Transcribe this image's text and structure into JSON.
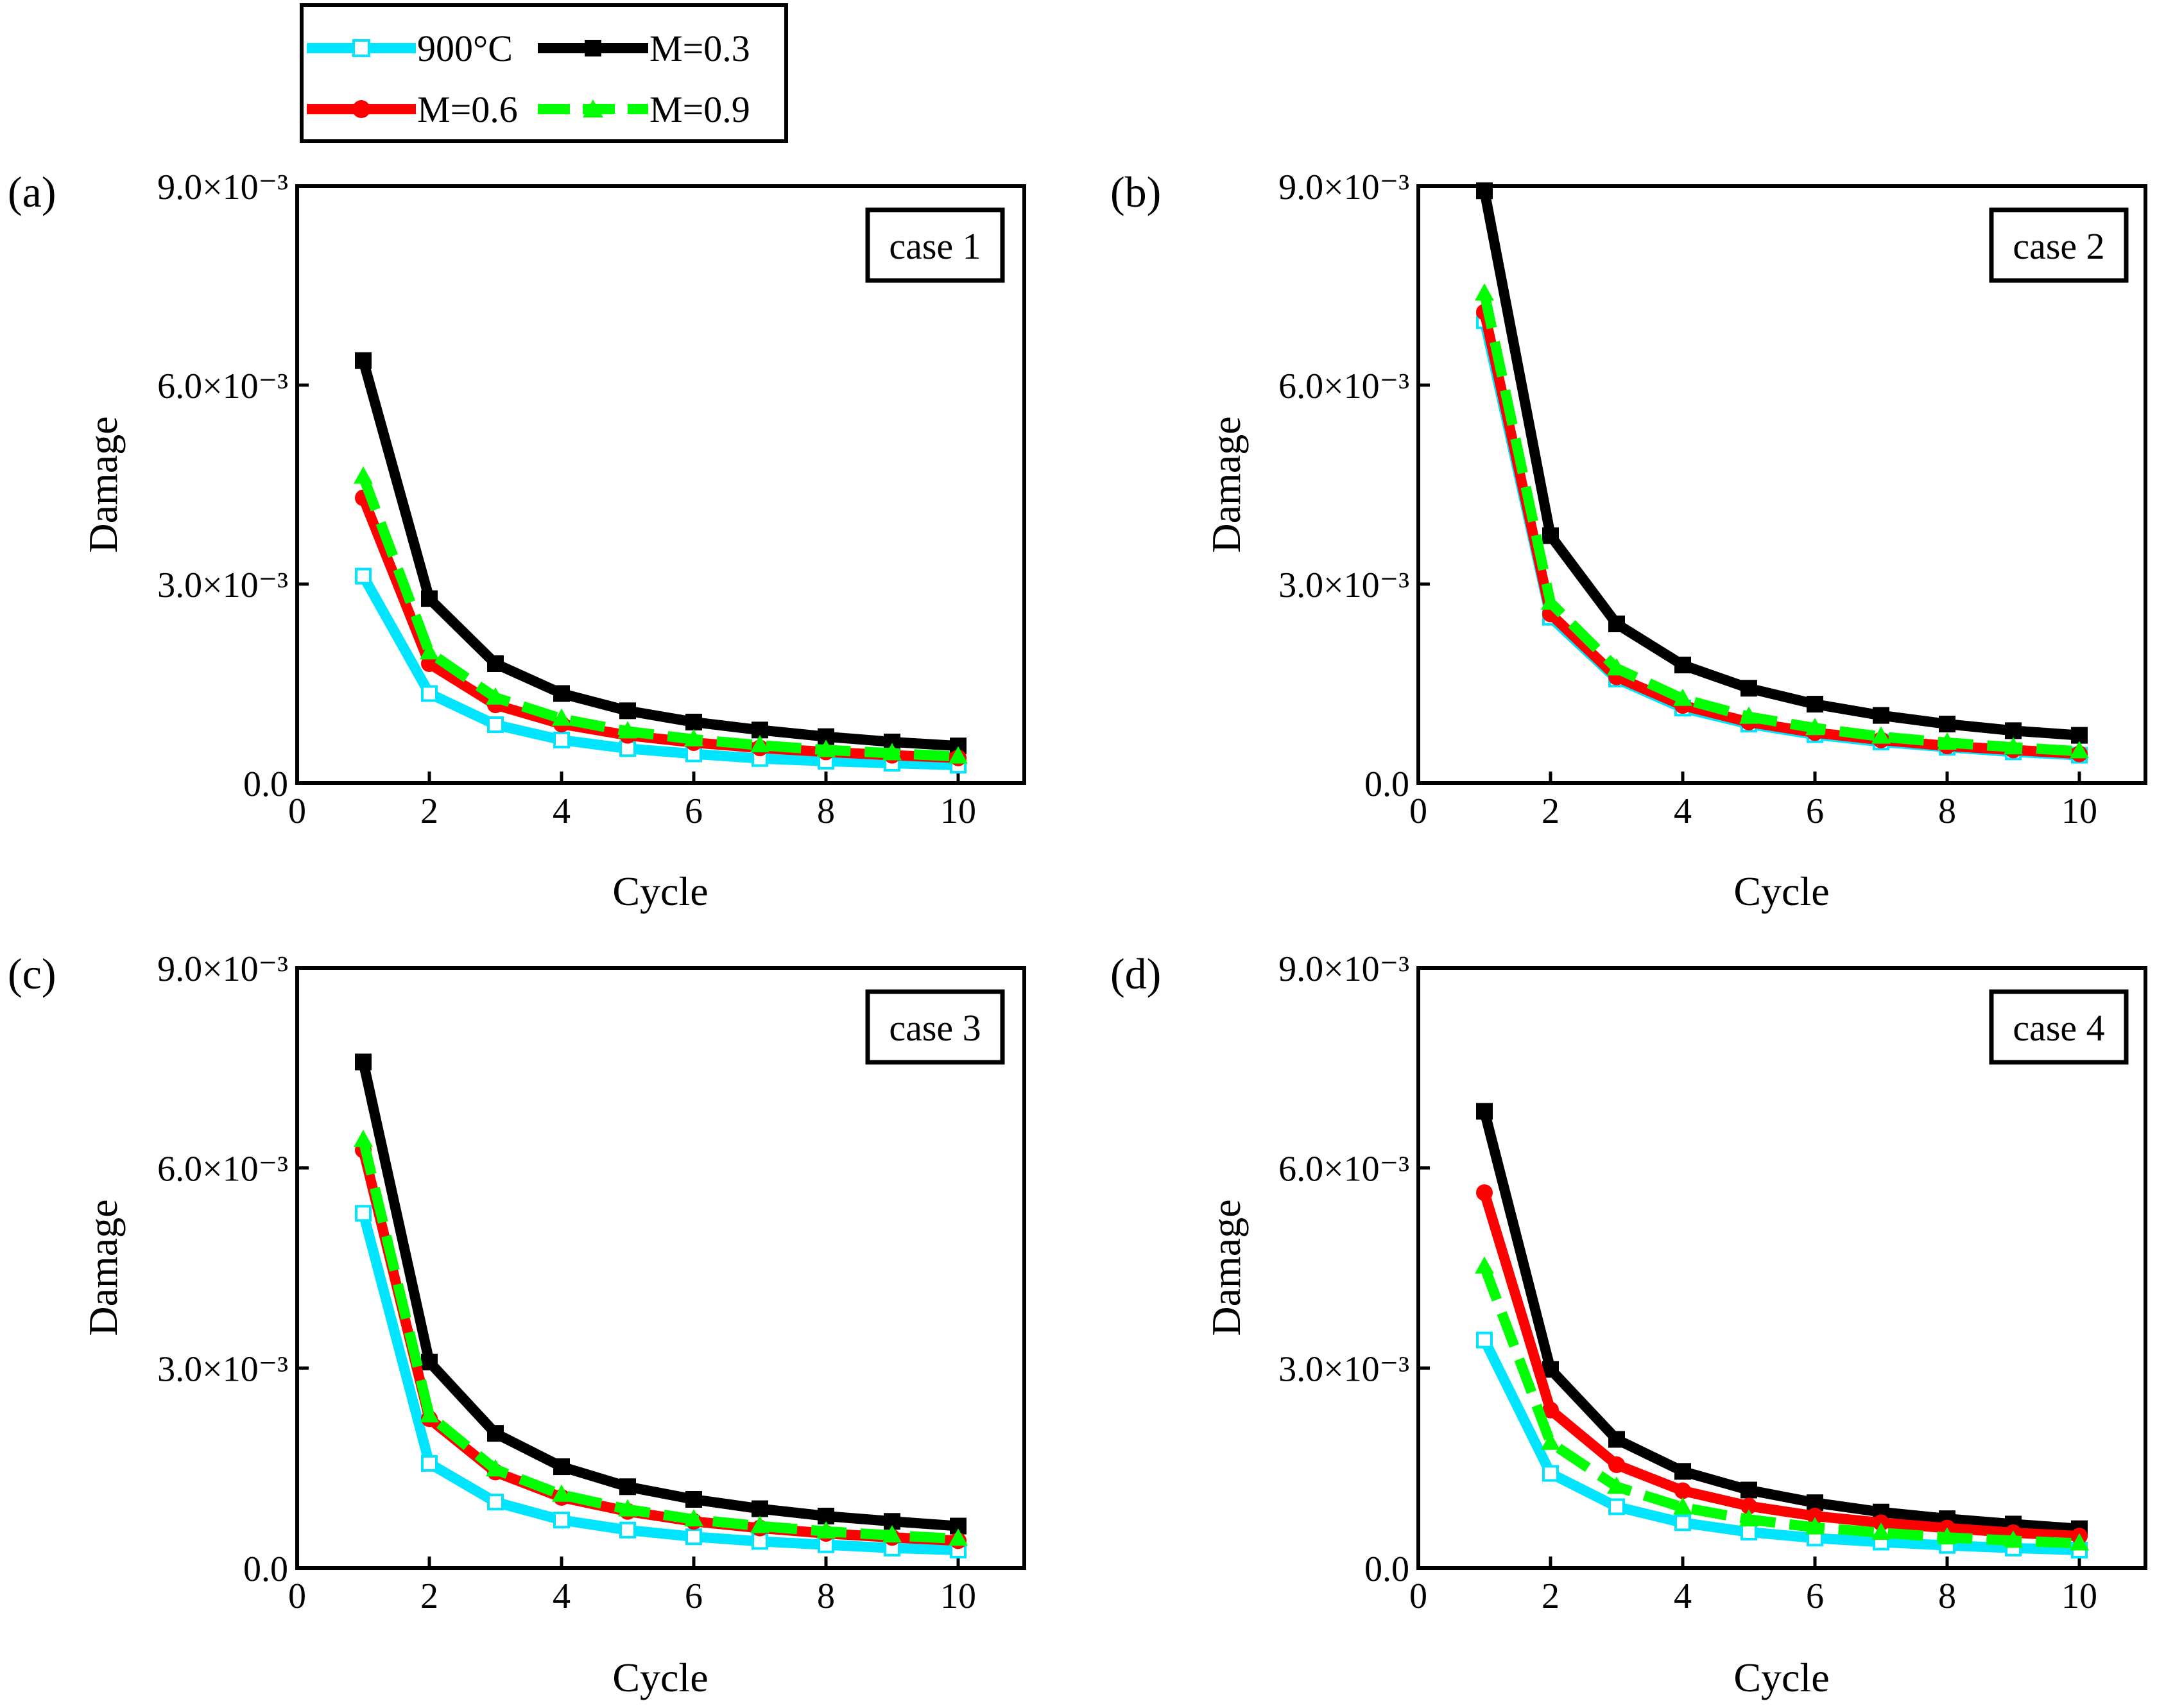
{
  "legend": {
    "entries": [
      {
        "name": "900°C",
        "color": "#00e5ff",
        "marker": "square-open",
        "dash": "solid"
      },
      {
        "name": "M=0.3",
        "color": "#000000",
        "marker": "square",
        "dash": "solid"
      },
      {
        "name": "M=0.6",
        "color": "#ff0000",
        "marker": "circle",
        "dash": "solid"
      },
      {
        "name": "M=0.9",
        "color": "#00ff00",
        "marker": "triangle",
        "dash": "dashed"
      }
    ]
  },
  "chart_data": [
    {
      "type": "line",
      "panel": "(a)",
      "case": "case 1",
      "xlabel": "Cycle",
      "ylabel": "Damage",
      "xlim": [
        0,
        11
      ],
      "ylim": [
        0,
        0.009
      ],
      "xticks": [
        "0",
        "2",
        "4",
        "6",
        "8",
        "10"
      ],
      "yticks": [
        "0.0",
        "3.0×10⁻³",
        "6.0×10⁻³",
        "9.0×10⁻³"
      ],
      "x": [
        1,
        2,
        3,
        4,
        5,
        6,
        7,
        8,
        9,
        10
      ],
      "series": [
        {
          "name": "900°C",
          "values": [
            0.00312,
            0.00135,
            0.00088,
            0.00065,
            0.00052,
            0.00044,
            0.00037,
            0.00033,
            0.0003,
            0.00027
          ]
        },
        {
          "name": "M=0.3",
          "values": [
            0.00637,
            0.00278,
            0.0018,
            0.00135,
            0.00109,
            0.00092,
            0.0008,
            0.0007,
            0.00062,
            0.00056
          ]
        },
        {
          "name": "M=0.6",
          "values": [
            0.0043,
            0.0018,
            0.00118,
            0.00089,
            0.00072,
            0.00061,
            0.00053,
            0.00047,
            0.00042,
            0.00038
          ]
        },
        {
          "name": "M=0.9",
          "values": [
            0.00462,
            0.00197,
            0.00129,
            0.00097,
            0.00078,
            0.00066,
            0.00057,
            0.0005,
            0.00045,
            0.0004
          ]
        }
      ]
    },
    {
      "type": "line",
      "panel": "(b)",
      "case": "case 2",
      "xlabel": "Cycle",
      "ylabel": "Damage",
      "xlim": [
        0,
        11
      ],
      "ylim": [
        0,
        0.009
      ],
      "xticks": [
        "0",
        "2",
        "4",
        "6",
        "8",
        "10"
      ],
      "yticks": [
        "0.0",
        "3.0×10⁻³",
        "6.0×10⁻³",
        "9.0×10⁻³"
      ],
      "x": [
        1,
        2,
        3,
        4,
        5,
        6,
        7,
        8,
        9,
        10
      ],
      "series": [
        {
          "name": "900°C",
          "values": [
            0.00697,
            0.0025,
            0.00157,
            0.00113,
            0.00089,
            0.00073,
            0.00062,
            0.00054,
            0.00047,
            0.00042
          ]
        },
        {
          "name": "M=0.3",
          "values": [
            0.00893,
            0.00373,
            0.0024,
            0.00178,
            0.00143,
            0.00119,
            0.00102,
            0.00089,
            0.00079,
            0.00072
          ]
        },
        {
          "name": "M=0.6",
          "values": [
            0.0071,
            0.00255,
            0.0016,
            0.00117,
            0.00092,
            0.00076,
            0.00065,
            0.00056,
            0.0005,
            0.00044
          ]
        },
        {
          "name": "M=0.9",
          "values": [
            0.00738,
            0.00272,
            0.00173,
            0.00127,
            0.001,
            0.00083,
            0.0007,
            0.00061,
            0.00054,
            0.00048
          ]
        }
      ]
    },
    {
      "type": "line",
      "panel": "(c)",
      "case": "case 3",
      "xlabel": "Cycle",
      "ylabel": "Damage",
      "xlim": [
        0,
        11
      ],
      "ylim": [
        0,
        0.009
      ],
      "xticks": [
        "0",
        "2",
        "4",
        "6",
        "8",
        "10"
      ],
      "yticks": [
        "0.0",
        "3.0×10⁻³",
        "6.0×10⁻³",
        "9.0×10⁻³"
      ],
      "x": [
        1,
        2,
        3,
        4,
        5,
        6,
        7,
        8,
        9,
        10
      ],
      "series": [
        {
          "name": "900°C",
          "values": [
            0.00532,
            0.00157,
            0.00099,
            0.00072,
            0.00057,
            0.00047,
            0.0004,
            0.00035,
            0.0003,
            0.00027
          ]
        },
        {
          "name": "M=0.3",
          "values": [
            0.00759,
            0.00309,
            0.00202,
            0.00152,
            0.00122,
            0.00103,
            0.00089,
            0.00078,
            0.0007,
            0.00063
          ]
        },
        {
          "name": "M=0.6",
          "values": [
            0.00627,
            0.00224,
            0.00144,
            0.00106,
            0.00085,
            0.0007,
            0.0006,
            0.00052,
            0.00046,
            0.00041
          ]
        },
        {
          "name": "M=0.9",
          "values": [
            0.00642,
            0.00229,
            0.00148,
            0.0011,
            0.00088,
            0.00073,
            0.00063,
            0.00055,
            0.00049,
            0.00044
          ]
        }
      ]
    },
    {
      "type": "line",
      "panel": "(d)",
      "case": "case 4",
      "xlabel": "Cycle",
      "ylabel": "Damage",
      "xlim": [
        0,
        11
      ],
      "ylim": [
        0,
        0.009
      ],
      "xticks": [
        "0",
        "2",
        "4",
        "6",
        "8",
        "10"
      ],
      "yticks": [
        "0.0",
        "3.0×10⁻³",
        "6.0×10⁻³",
        "9.0×10⁻³"
      ],
      "x": [
        1,
        2,
        3,
        4,
        5,
        6,
        7,
        8,
        9,
        10
      ],
      "series": [
        {
          "name": "900°C",
          "values": [
            0.00342,
            0.00142,
            0.00092,
            0.00068,
            0.00054,
            0.00045,
            0.00039,
            0.00034,
            0.0003,
            0.00027
          ]
        },
        {
          "name": "M=0.3",
          "values": [
            0.00685,
            0.00298,
            0.00193,
            0.00145,
            0.00117,
            0.00098,
            0.00084,
            0.00074,
            0.00066,
            0.00059
          ]
        },
        {
          "name": "M=0.6",
          "values": [
            0.00563,
            0.00237,
            0.00155,
            0.00116,
            0.00093,
            0.00078,
            0.00068,
            0.0006,
            0.00053,
            0.00048
          ]
        },
        {
          "name": "M=0.9",
          "values": [
            0.00452,
            0.00188,
            0.00122,
            0.00091,
            0.00073,
            0.00061,
            0.00053,
            0.00046,
            0.00041,
            0.00037
          ]
        }
      ]
    }
  ]
}
